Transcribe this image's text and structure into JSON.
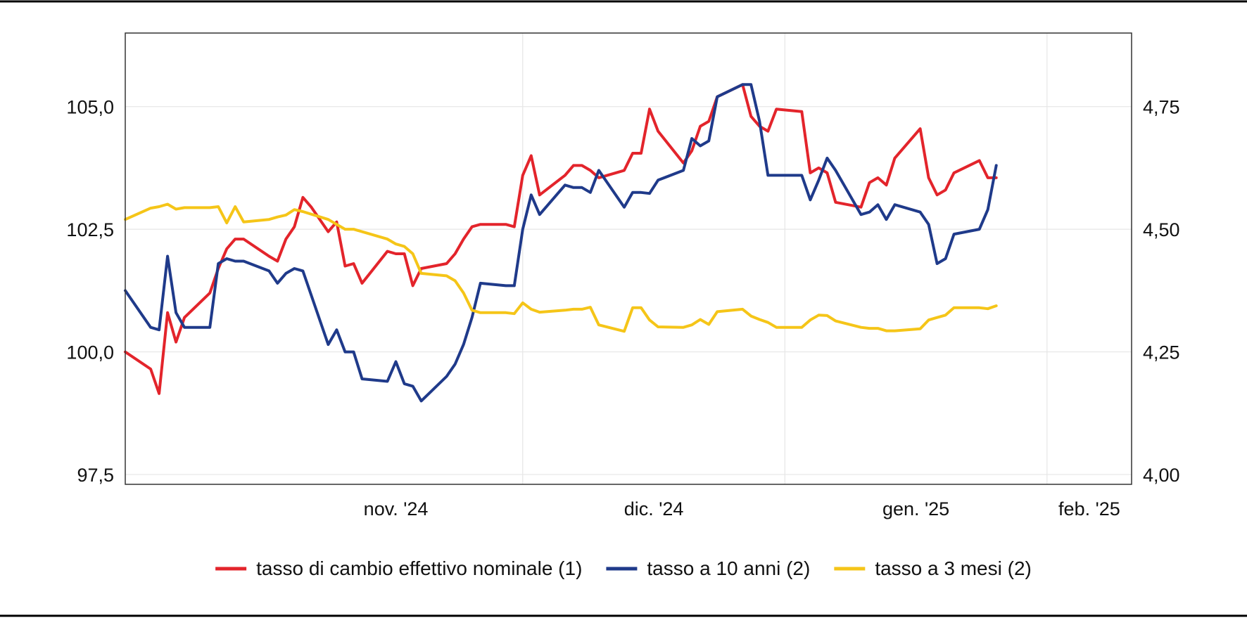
{
  "chart_data": {
    "type": "line",
    "title": "",
    "xlabel": "",
    "ylabel_left": "",
    "ylabel_right": "",
    "x_range": [
      "2024-10-15",
      "2025-02-11"
    ],
    "x_ticks": [
      {
        "date": "2024-11-01",
        "label": "nov. '24"
      },
      {
        "date": "2024-12-01",
        "label": "dic. '24"
      },
      {
        "date": "2025-01-01",
        "label": "gen. '25"
      },
      {
        "date": "2025-02-01",
        "label": "feb. '25"
      }
    ],
    "y_left": {
      "range": [
        97.3,
        106.5
      ],
      "ticks": [
        97.5,
        100.0,
        102.5,
        105.0
      ],
      "tick_labels": [
        "97,5",
        "100,0",
        "102,5",
        "105,0"
      ]
    },
    "y_right": {
      "range": [
        3.98,
        4.9
      ],
      "ticks": [
        4.0,
        4.25,
        4.5,
        4.75
      ],
      "tick_labels": [
        "4,00",
        "4,25",
        "4,50",
        "4,75"
      ]
    },
    "grid": true,
    "legend_position": "bottom",
    "series": [
      {
        "name": "tasso di cambio effettivo nominale (1)",
        "axis": "left",
        "color": "#e3242b",
        "points": [
          [
            "2024-10-15",
            100.0
          ],
          [
            "2024-10-18",
            99.65
          ],
          [
            "2024-10-19",
            99.15
          ],
          [
            "2024-10-20",
            100.8
          ],
          [
            "2024-10-21",
            100.2
          ],
          [
            "2024-10-22",
            100.7
          ],
          [
            "2024-10-25",
            101.2
          ],
          [
            "2024-10-26",
            101.7
          ],
          [
            "2024-10-27",
            102.1
          ],
          [
            "2024-10-28",
            102.3
          ],
          [
            "2024-10-29",
            102.3
          ],
          [
            "2024-11-01",
            101.95
          ],
          [
            "2024-11-02",
            101.85
          ],
          [
            "2024-11-03",
            102.3
          ],
          [
            "2024-11-04",
            102.55
          ],
          [
            "2024-11-05",
            103.15
          ],
          [
            "2024-11-06",
            102.95
          ],
          [
            "2024-11-08",
            102.45
          ],
          [
            "2024-11-09",
            102.65
          ],
          [
            "2024-11-10",
            101.75
          ],
          [
            "2024-11-11",
            101.8
          ],
          [
            "2024-11-12",
            101.4
          ],
          [
            "2024-11-15",
            102.05
          ],
          [
            "2024-11-16",
            102.0
          ],
          [
            "2024-11-17",
            102.0
          ],
          [
            "2024-11-18",
            101.35
          ],
          [
            "2024-11-19",
            101.7
          ],
          [
            "2024-11-22",
            101.8
          ],
          [
            "2024-11-23",
            102.0
          ],
          [
            "2024-11-24",
            102.3
          ],
          [
            "2024-11-25",
            102.55
          ],
          [
            "2024-11-26",
            102.6
          ],
          [
            "2024-11-29",
            102.6
          ],
          [
            "2024-11-30",
            102.55
          ],
          [
            "2024-12-01",
            103.6
          ],
          [
            "2024-12-02",
            104.0
          ],
          [
            "2024-12-03",
            103.2
          ],
          [
            "2024-12-06",
            103.6
          ],
          [
            "2024-12-07",
            103.8
          ],
          [
            "2024-12-08",
            103.8
          ],
          [
            "2024-12-09",
            103.7
          ],
          [
            "2024-12-10",
            103.55
          ],
          [
            "2024-12-13",
            103.7
          ],
          [
            "2024-12-14",
            104.05
          ],
          [
            "2024-12-15",
            104.05
          ],
          [
            "2024-12-16",
            104.95
          ],
          [
            "2024-12-17",
            104.5
          ],
          [
            "2024-12-20",
            103.85
          ],
          [
            "2024-12-21",
            104.1
          ],
          [
            "2024-12-22",
            104.6
          ],
          [
            "2024-12-23",
            104.7
          ],
          [
            "2024-12-24",
            105.2
          ],
          [
            "2024-12-27",
            105.45
          ],
          [
            "2024-12-28",
            104.8
          ],
          [
            "2024-12-29",
            104.6
          ],
          [
            "2024-12-30",
            104.5
          ],
          [
            "2024-12-31",
            104.95
          ],
          [
            "2025-01-03",
            104.9
          ],
          [
            "2025-01-04",
            103.65
          ],
          [
            "2025-01-05",
            103.75
          ],
          [
            "2025-01-06",
            103.65
          ],
          [
            "2025-01-07",
            103.05
          ],
          [
            "2025-01-10",
            102.95
          ],
          [
            "2025-01-11",
            103.45
          ],
          [
            "2025-01-12",
            103.55
          ],
          [
            "2025-01-13",
            103.4
          ],
          [
            "2025-01-14",
            103.95
          ],
          [
            "2025-01-17",
            104.55
          ],
          [
            "2025-01-18",
            103.55
          ],
          [
            "2025-01-19",
            103.2
          ],
          [
            "2025-01-20",
            103.3
          ],
          [
            "2025-01-21",
            103.65
          ],
          [
            "2025-01-24",
            103.9
          ],
          [
            "2025-01-25",
            103.55
          ],
          [
            "2025-01-26",
            103.55
          ]
        ]
      },
      {
        "name": "tasso a 10 anni (2)",
        "axis": "right",
        "color": "#1f3a8a",
        "points": [
          [
            "2024-10-15",
            4.375
          ],
          [
            "2024-10-18",
            4.3
          ],
          [
            "2024-10-19",
            4.295
          ],
          [
            "2024-10-20",
            4.445
          ],
          [
            "2024-10-21",
            4.33
          ],
          [
            "2024-10-22",
            4.3
          ],
          [
            "2024-10-25",
            4.3
          ],
          [
            "2024-10-26",
            4.43
          ],
          [
            "2024-10-27",
            4.44
          ],
          [
            "2024-10-28",
            4.435
          ],
          [
            "2024-10-29",
            4.435
          ],
          [
            "2024-11-01",
            4.415
          ],
          [
            "2024-11-02",
            4.39
          ],
          [
            "2024-11-03",
            4.41
          ],
          [
            "2024-11-04",
            4.42
          ],
          [
            "2024-11-05",
            4.415
          ],
          [
            "2024-11-08",
            4.265
          ],
          [
            "2024-11-09",
            4.295
          ],
          [
            "2024-11-10",
            4.25
          ],
          [
            "2024-11-11",
            4.25
          ],
          [
            "2024-11-12",
            4.195
          ],
          [
            "2024-11-15",
            4.19
          ],
          [
            "2024-11-16",
            4.23
          ],
          [
            "2024-11-17",
            4.185
          ],
          [
            "2024-11-18",
            4.18
          ],
          [
            "2024-11-19",
            4.15
          ],
          [
            "2024-11-22",
            4.2
          ],
          [
            "2024-11-23",
            4.225
          ],
          [
            "2024-11-24",
            4.265
          ],
          [
            "2024-11-25",
            4.32
          ],
          [
            "2024-11-26",
            4.39
          ],
          [
            "2024-11-29",
            4.385
          ],
          [
            "2024-11-30",
            4.385
          ],
          [
            "2024-12-01",
            4.5
          ],
          [
            "2024-12-02",
            4.57
          ],
          [
            "2024-12-03",
            4.53
          ],
          [
            "2024-12-06",
            4.59
          ],
          [
            "2024-12-07",
            4.585
          ],
          [
            "2024-12-08",
            4.585
          ],
          [
            "2024-12-09",
            4.575
          ],
          [
            "2024-12-10",
            4.62
          ],
          [
            "2024-12-13",
            4.545
          ],
          [
            "2024-12-14",
            4.575
          ],
          [
            "2024-12-15",
            4.575
          ],
          [
            "2024-12-16",
            4.573
          ],
          [
            "2024-12-17",
            4.6
          ],
          [
            "2024-12-20",
            4.62
          ],
          [
            "2024-12-21",
            4.685
          ],
          [
            "2024-12-22",
            4.67
          ],
          [
            "2024-12-23",
            4.68
          ],
          [
            "2024-12-24",
            4.77
          ],
          [
            "2024-12-27",
            4.795
          ],
          [
            "2024-12-28",
            4.795
          ],
          [
            "2024-12-29",
            4.72
          ],
          [
            "2024-12-30",
            4.61
          ],
          [
            "2024-12-31",
            4.61
          ],
          [
            "2025-01-03",
            4.61
          ],
          [
            "2025-01-04",
            4.56
          ],
          [
            "2025-01-05",
            4.6
          ],
          [
            "2025-01-06",
            4.645
          ],
          [
            "2025-01-07",
            4.62
          ],
          [
            "2025-01-10",
            4.53
          ],
          [
            "2025-01-11",
            4.535
          ],
          [
            "2025-01-12",
            4.55
          ],
          [
            "2025-01-13",
            4.52
          ],
          [
            "2025-01-14",
            4.55
          ],
          [
            "2025-01-17",
            4.535
          ],
          [
            "2025-01-18",
            4.51
          ],
          [
            "2025-01-19",
            4.43
          ],
          [
            "2025-01-20",
            4.44
          ],
          [
            "2025-01-21",
            4.49
          ],
          [
            "2025-01-24",
            4.5
          ],
          [
            "2025-01-25",
            4.54
          ],
          [
            "2025-01-26",
            4.63
          ]
        ]
      },
      {
        "name": "tasso a 3 mesi (2)",
        "axis": "right",
        "color": "#f5c518",
        "points": [
          [
            "2024-10-15",
            4.52
          ],
          [
            "2024-10-18",
            4.543
          ],
          [
            "2024-10-19",
            4.546
          ],
          [
            "2024-10-20",
            4.551
          ],
          [
            "2024-10-21",
            4.541
          ],
          [
            "2024-10-22",
            4.544
          ],
          [
            "2024-10-25",
            4.544
          ],
          [
            "2024-10-26",
            4.546
          ],
          [
            "2024-10-27",
            4.513
          ],
          [
            "2024-10-28",
            4.546
          ],
          [
            "2024-10-29",
            4.515
          ],
          [
            "2024-11-01",
            4.52
          ],
          [
            "2024-11-02",
            4.525
          ],
          [
            "2024-11-03",
            4.529
          ],
          [
            "2024-11-04",
            4.54
          ],
          [
            "2024-11-05",
            4.536
          ],
          [
            "2024-11-08",
            4.52
          ],
          [
            "2024-11-09",
            4.51
          ],
          [
            "2024-11-10",
            4.5
          ],
          [
            "2024-11-11",
            4.5
          ],
          [
            "2024-11-15",
            4.48
          ],
          [
            "2024-11-16",
            4.47
          ],
          [
            "2024-11-17",
            4.465
          ],
          [
            "2024-11-18",
            4.45
          ],
          [
            "2024-11-19",
            4.41
          ],
          [
            "2024-11-22",
            4.405
          ],
          [
            "2024-11-23",
            4.395
          ],
          [
            "2024-11-24",
            4.37
          ],
          [
            "2024-11-25",
            4.335
          ],
          [
            "2024-11-26",
            4.33
          ],
          [
            "2024-11-29",
            4.33
          ],
          [
            "2024-11-30",
            4.328
          ],
          [
            "2024-12-01",
            4.35
          ],
          [
            "2024-12-02",
            4.337
          ],
          [
            "2024-12-03",
            4.331
          ],
          [
            "2024-12-06",
            4.335
          ],
          [
            "2024-12-07",
            4.337
          ],
          [
            "2024-12-08",
            4.337
          ],
          [
            "2024-12-09",
            4.341
          ],
          [
            "2024-12-10",
            4.305
          ],
          [
            "2024-12-13",
            4.292
          ],
          [
            "2024-12-14",
            4.34
          ],
          [
            "2024-12-15",
            4.34
          ],
          [
            "2024-12-16",
            4.315
          ],
          [
            "2024-12-17",
            4.301
          ],
          [
            "2024-12-20",
            4.3
          ],
          [
            "2024-12-21",
            4.305
          ],
          [
            "2024-12-22",
            4.316
          ],
          [
            "2024-12-23",
            4.306
          ],
          [
            "2024-12-24",
            4.332
          ],
          [
            "2024-12-27",
            4.337
          ],
          [
            "2024-12-28",
            4.323
          ],
          [
            "2024-12-29",
            4.316
          ],
          [
            "2024-12-30",
            4.31
          ],
          [
            "2024-12-31",
            4.3
          ],
          [
            "2025-01-03",
            4.3
          ],
          [
            "2025-01-04",
            4.315
          ],
          [
            "2025-01-05",
            4.325
          ],
          [
            "2025-01-06",
            4.324
          ],
          [
            "2025-01-07",
            4.313
          ],
          [
            "2025-01-10",
            4.3
          ],
          [
            "2025-01-11",
            4.298
          ],
          [
            "2025-01-12",
            4.298
          ],
          [
            "2025-01-13",
            4.293
          ],
          [
            "2025-01-14",
            4.293
          ],
          [
            "2025-01-17",
            4.297
          ],
          [
            "2025-01-18",
            4.315
          ],
          [
            "2025-01-19",
            4.32
          ],
          [
            "2025-01-20",
            4.325
          ],
          [
            "2025-01-21",
            4.34
          ],
          [
            "2025-01-24",
            4.34
          ],
          [
            "2025-01-25",
            4.338
          ],
          [
            "2025-01-26",
            4.344
          ]
        ]
      }
    ]
  }
}
